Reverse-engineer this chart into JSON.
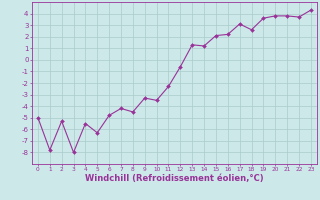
{
  "x": [
    0,
    1,
    2,
    3,
    4,
    5,
    6,
    7,
    8,
    9,
    10,
    11,
    12,
    13,
    14,
    15,
    16,
    17,
    18,
    19,
    20,
    21,
    22,
    23
  ],
  "y": [
    -5,
    -7.8,
    -5.3,
    -8.0,
    -5.5,
    -6.3,
    -4.8,
    -4.2,
    -4.5,
    -3.3,
    -3.5,
    -2.3,
    -0.6,
    1.3,
    1.2,
    2.1,
    2.2,
    3.1,
    2.6,
    3.6,
    3.8,
    3.8,
    3.7,
    4.3
  ],
  "line_color": "#993399",
  "marker": "D",
  "marker_size": 2.0,
  "background_color": "#cce8e8",
  "grid_color": "#aacccc",
  "xlabel": "Windchill (Refroidissement éolien,°C)",
  "ylabel": "",
  "ylim": [
    -9,
    5
  ],
  "xlim": [
    -0.5,
    23.5
  ],
  "yticks": [
    -8,
    -7,
    -6,
    -5,
    -4,
    -3,
    -2,
    -1,
    0,
    1,
    2,
    3,
    4
  ],
  "xticks": [
    0,
    1,
    2,
    3,
    4,
    5,
    6,
    7,
    8,
    9,
    10,
    11,
    12,
    13,
    14,
    15,
    16,
    17,
    18,
    19,
    20,
    21,
    22,
    23
  ],
  "tick_color": "#993399",
  "label_color": "#993399",
  "spine_color": "#993399",
  "linewidth": 0.8,
  "xlabel_fontsize": 6.0,
  "tick_fontsize_x": 4.2,
  "tick_fontsize_y": 5.0
}
